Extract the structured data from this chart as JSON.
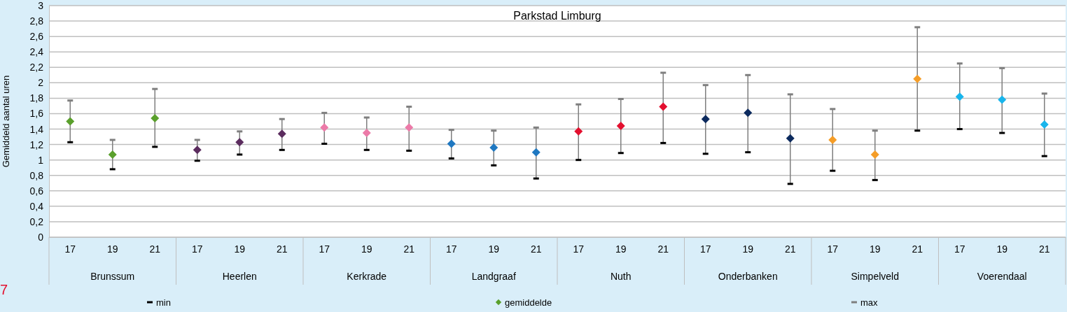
{
  "chart_data": {
    "type": "scatter",
    "title": "Parkstad Limburg",
    "ylabel": "Gemiddeld aantal uren",
    "categories": [
      "17",
      "19",
      "21",
      "17",
      "19",
      "21",
      "17",
      "19",
      "21",
      "17",
      "19",
      "21",
      "17",
      "19",
      "21",
      "17",
      "19",
      "21",
      "17",
      "19",
      "21",
      "17",
      "19",
      "21"
    ],
    "annotations": [
      "Brunssum",
      "Heerlen",
      "Kerkrade",
      "Landgraaf",
      "Nuth",
      "Onderbanken",
      "Simpelveld",
      "Voerendaal",
      "7"
    ],
    "series": [
      {
        "name": "min",
        "color": "#000000",
        "values": [
          1.23,
          0.88,
          1.17,
          0.99,
          1.07,
          1.13,
          1.21,
          1.13,
          1.12,
          1.02,
          0.93,
          0.76,
          1.0,
          1.09,
          1.22,
          1.08,
          1.1,
          0.69,
          0.86,
          0.74,
          1.38,
          1.4,
          1.35,
          1.05
        ]
      },
      {
        "name": "gemiddelde",
        "color": "#5aa02c",
        "marker": "diamond",
        "colors": [
          "#5aa02c",
          "#5aa02c",
          "#5aa02c",
          "#5b2c5e",
          "#5b2c5e",
          "#5b2c5e",
          "#ec7aa8",
          "#ec7aa8",
          "#ec7aa8",
          "#1f78c1",
          "#1f78c1",
          "#1f78c1",
          "#e3102f",
          "#e3102f",
          "#e3102f",
          "#0c2a5e",
          "#0c2a5e",
          "#0c2a5e",
          "#f59d27",
          "#f59d27",
          "#f59d27",
          "#18b5ec",
          "#18b5ec",
          "#18b5ec"
        ],
        "values": [
          1.5,
          1.07,
          1.54,
          1.13,
          1.23,
          1.34,
          1.42,
          1.35,
          1.42,
          1.21,
          1.16,
          1.1,
          1.37,
          1.44,
          1.69,
          1.53,
          1.61,
          1.28,
          1.26,
          1.07,
          2.05,
          1.82,
          1.78,
          1.46
        ]
      },
      {
        "name": "max",
        "color": "#7f7f7f",
        "values": [
          1.77,
          1.26,
          1.92,
          1.26,
          1.37,
          1.53,
          1.61,
          1.55,
          1.69,
          1.39,
          1.38,
          1.42,
          1.72,
          1.79,
          2.13,
          1.97,
          2.1,
          1.85,
          1.66,
          1.38,
          2.72,
          2.25,
          2.19,
          1.86
        ]
      }
    ],
    "ylim": [
      0,
      3
    ],
    "yticks": [
      {
        "value": 0,
        "label": "0"
      },
      {
        "value": 0.2,
        "label": "0,2"
      },
      {
        "value": 0.4,
        "label": "0,4"
      },
      {
        "value": 0.6,
        "label": "0,6"
      },
      {
        "value": 0.8,
        "label": "0,8"
      },
      {
        "value": 1,
        "label": "1"
      },
      {
        "value": 1.2,
        "label": "1,2"
      },
      {
        "value": 1.4,
        "label": "1,4"
      },
      {
        "value": 1.6,
        "label": "1,6"
      },
      {
        "value": 1.8,
        "label": "1,8"
      },
      {
        "value": 2,
        "label": "2"
      },
      {
        "value": 2.2,
        "label": "2,2"
      },
      {
        "value": 2.4,
        "label": "2,4"
      },
      {
        "value": 2.6,
        "label": "2,6"
      },
      {
        "value": 2.8,
        "label": "2,8"
      },
      {
        "value": 3,
        "label": "3"
      }
    ],
    "grid": "y",
    "legend": "bottom"
  }
}
